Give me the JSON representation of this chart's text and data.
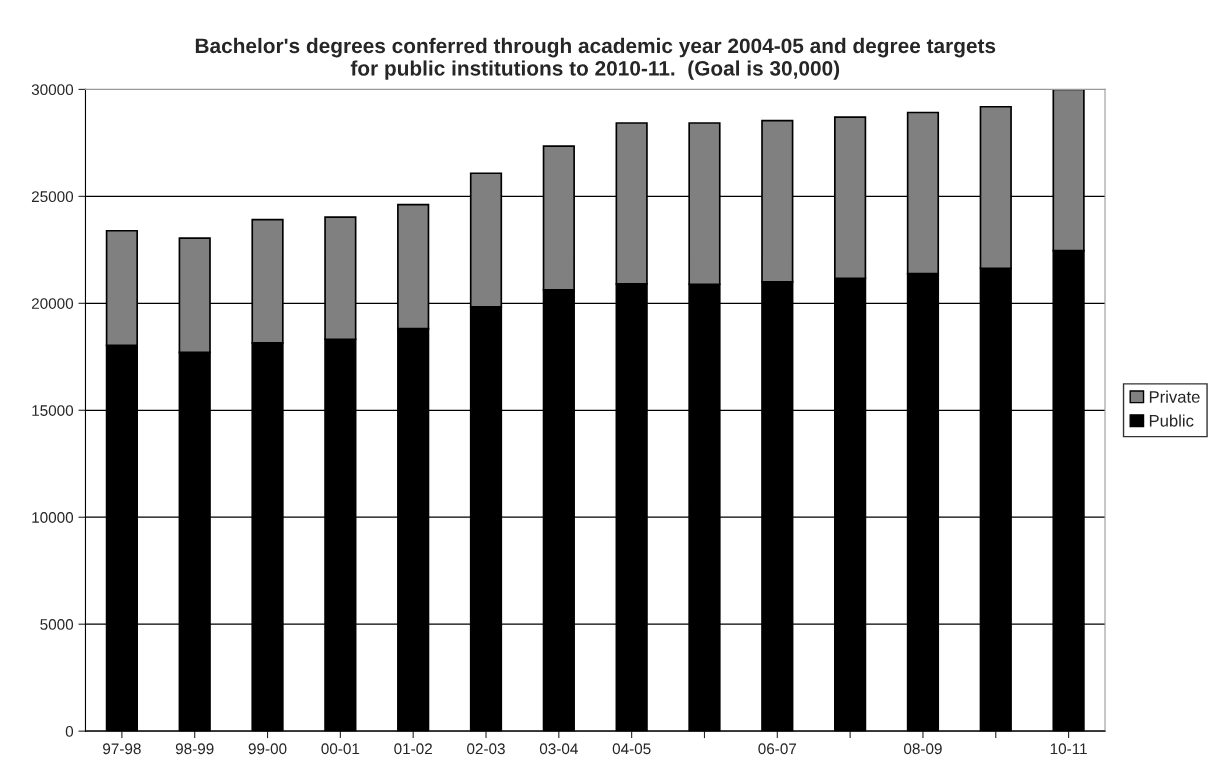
{
  "chart_data": {
    "type": "bar",
    "title": "Bachelor's degrees conferred through academic year 2004-05 and degree targets\nfor public institutions to 2010-11.  (Goal is 30,000)",
    "categories": [
      "97-98",
      "98-99",
      "99-00",
      "00-01",
      "01-02",
      "02-03",
      "03-04",
      "04-05",
      null,
      "06-07",
      null,
      "08-09",
      null,
      "10-11"
    ],
    "stacked": true,
    "series": [
      {
        "name": "Public",
        "color": "#000000",
        "values": [
          18030,
          17710,
          18150,
          18320,
          18820,
          19840,
          20630,
          20910,
          20890,
          21000,
          21170,
          21390,
          21640,
          22460
        ]
      },
      {
        "name": "Private",
        "color": "#808080",
        "values": [
          5360,
          5340,
          5760,
          5710,
          5790,
          6240,
          6720,
          7520,
          7540,
          7540,
          7530,
          7530,
          7550,
          7540
        ]
      }
    ],
    "ylim": [
      0,
      30000
    ],
    "yticks": [
      0,
      5000,
      10000,
      15000,
      20000,
      25000,
      30000
    ],
    "grid": "y",
    "legend": "right"
  }
}
